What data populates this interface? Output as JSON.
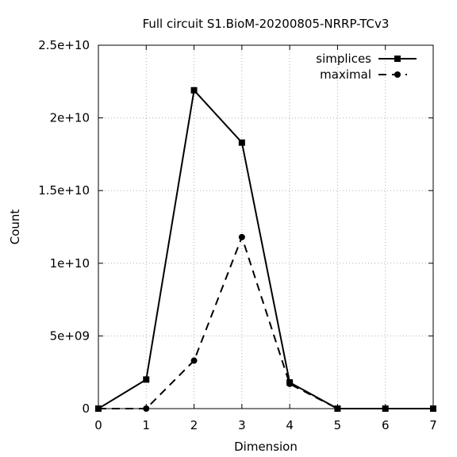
{
  "chart_data": {
    "type": "line",
    "title": "Full circuit S1.BioM-20200805-NRRP-TCv3",
    "xlabel": "Dimension",
    "ylabel": "Count",
    "x": [
      0,
      1,
      2,
      3,
      4,
      5,
      6,
      7
    ],
    "xlim": [
      0,
      7
    ],
    "ylim": [
      0,
      25000000000
    ],
    "x_ticks": [
      "0",
      "1",
      "2",
      "3",
      "4",
      "5",
      "6",
      "7"
    ],
    "y_ticks": [
      {
        "value": 0,
        "label": "0"
      },
      {
        "value": 5000000000,
        "label": "5e+09"
      },
      {
        "value": 10000000000,
        "label": "1e+10"
      },
      {
        "value": 15000000000,
        "label": "1.5e+10"
      },
      {
        "value": 20000000000,
        "label": "2e+10"
      },
      {
        "value": 25000000000,
        "label": "2.5e+10"
      }
    ],
    "grid": true,
    "legend_position": "top-right",
    "series": [
      {
        "name": "simplices",
        "marker": "square",
        "line": "solid",
        "values": [
          0,
          2000000000,
          21900000000,
          18300000000,
          1800000000,
          0,
          0,
          0
        ]
      },
      {
        "name": "maximal",
        "marker": "circle",
        "line": "dashed",
        "values": [
          0,
          0,
          3300000000,
          11800000000,
          1700000000,
          0,
          0,
          0
        ]
      }
    ]
  }
}
